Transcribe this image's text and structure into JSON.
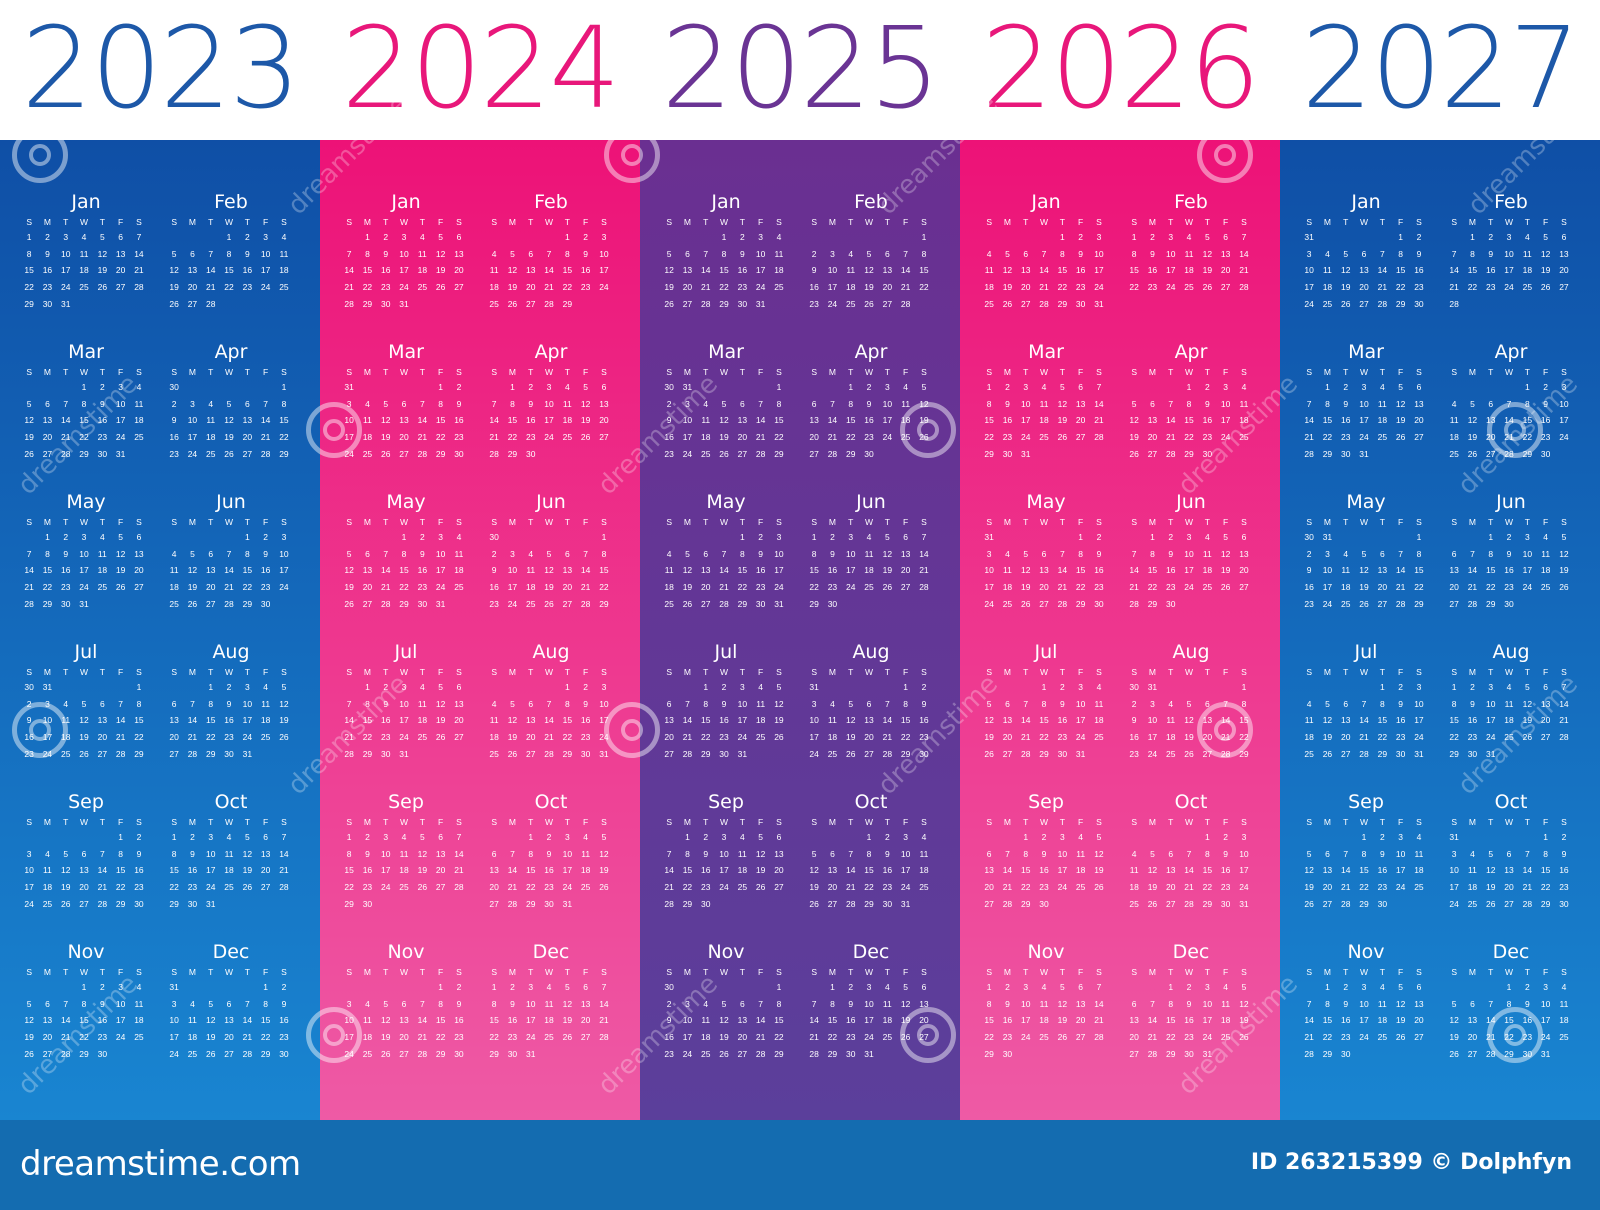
{
  "header": {
    "years": [
      {
        "label": "2023",
        "color": "#1d58a8"
      },
      {
        "label": "2024",
        "color": "#e8177a"
      },
      {
        "label": "2025",
        "color": "#6a3494"
      },
      {
        "label": "2026",
        "color": "#e8177a"
      },
      {
        "label": "2027",
        "color": "#1d58a8"
      }
    ]
  },
  "columns": [
    {
      "year": 2023,
      "gradient": [
        "#0f4fa6",
        "#1985d1"
      ]
    },
    {
      "year": 2024,
      "gradient": [
        "#ed1277",
        "#ee5aa5"
      ]
    },
    {
      "year": 2025,
      "gradient": [
        "#6a2f91",
        "#5b3f9b"
      ]
    },
    {
      "year": 2026,
      "gradient": [
        "#ed1277",
        "#ee5aa5"
      ]
    },
    {
      "year": 2027,
      "gradient": [
        "#0f4fa6",
        "#1985d1"
      ]
    }
  ],
  "months": [
    "Jan",
    "Feb",
    "Mar",
    "Apr",
    "May",
    "Jun",
    "Jul",
    "Aug",
    "Sep",
    "Oct",
    "Nov",
    "Dec"
  ],
  "weekdays": [
    "S",
    "M",
    "T",
    "W",
    "T",
    "F",
    "S"
  ],
  "footer": {
    "brand": "dreamstime.com",
    "credit": "ID 263215399 © Dolphfyn"
  },
  "watermark": {
    "text": "dreamstime",
    "icon": "dreamstime-swirl-icon"
  }
}
